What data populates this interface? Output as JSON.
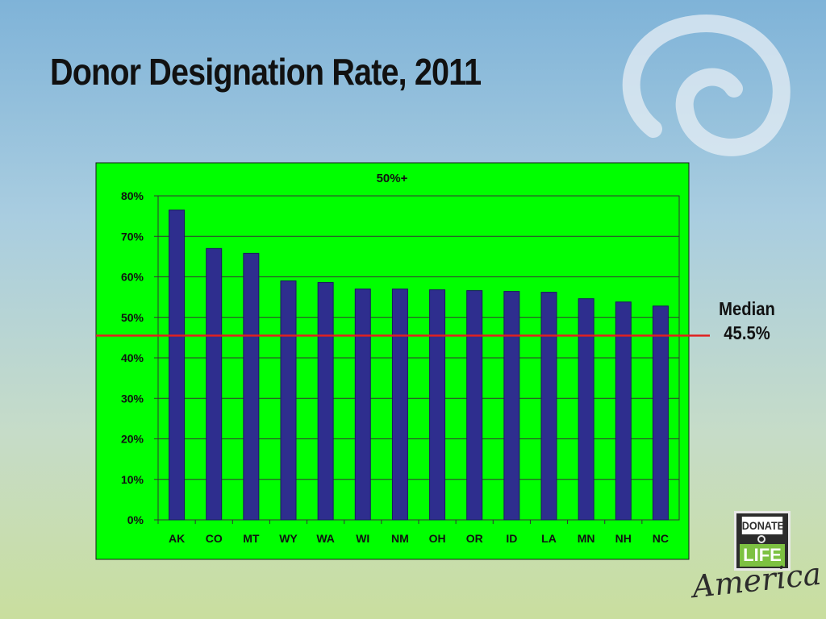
{
  "slide": {
    "title": "Donor Designation Rate, 2011"
  },
  "median": {
    "label_line1": "Median",
    "label_line2": "45.5%",
    "value": 45.5,
    "color": "#e02020"
  },
  "logo": {
    "top_text": "DONATE",
    "main_text": "LIFE",
    "script_text": "America"
  },
  "colors": {
    "plot_background": "#00ff00",
    "bar_fill": "#2e2e8e",
    "bar_stroke": "#1a1a5e"
  },
  "chart_data": {
    "type": "bar",
    "title": "50%+",
    "xlabel": "",
    "ylabel": "",
    "categories": [
      "AK",
      "CO",
      "MT",
      "WY",
      "WA",
      "WI",
      "NM",
      "OH",
      "OR",
      "ID",
      "LA",
      "MN",
      "NH",
      "NC"
    ],
    "values": [
      76.5,
      67.0,
      65.8,
      59.0,
      58.6,
      57.0,
      57.0,
      56.8,
      56.6,
      56.4,
      56.2,
      54.6,
      53.8,
      52.8
    ],
    "ylim": [
      0,
      80
    ],
    "yticks": [
      "0%",
      "10%",
      "20%",
      "30%",
      "40%",
      "50%",
      "60%",
      "70%",
      "80%"
    ],
    "grid": true,
    "legend": "none"
  }
}
